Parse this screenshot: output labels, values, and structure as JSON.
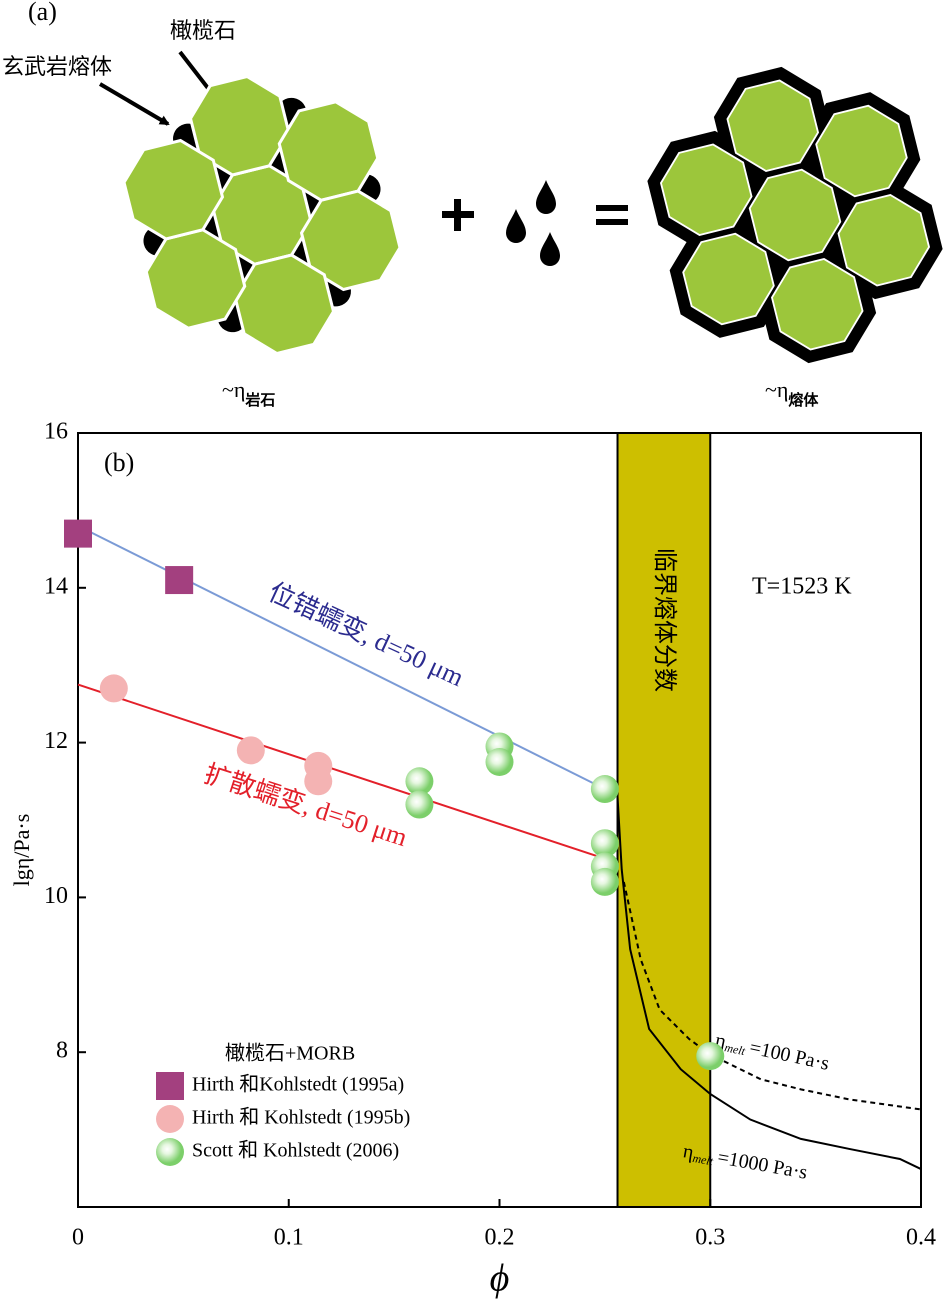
{
  "panel_a": {
    "label": "(a)",
    "olivine_label": "橄榄石",
    "melt_label": "玄武岩熔体",
    "viscosity_labels": [
      {
        "symbol": "~η",
        "subscript": "岩石"
      },
      {
        "symbol": "~η",
        "subscript": "熔体"
      }
    ]
  },
  "chart_data": {
    "type": "scatter",
    "panel_label": "(b)",
    "xlabel": "ϕ",
    "ylabel": "lgη/Pa·s",
    "xlim": [
      0,
      0.4
    ],
    "ylim": [
      6,
      16
    ],
    "xticks": [
      0,
      0.1,
      0.2,
      0.3,
      0.4
    ],
    "yticks": [
      8,
      10,
      12,
      14,
      16
    ],
    "annotation": "T=1523 K",
    "legend_title": "橄榄石+MORB",
    "legend": "lower left",
    "series": [
      {
        "name": "Hirth 和Kohlstedt (1995a)",
        "marker": "square",
        "color": "#a3407f",
        "x": [
          0,
          0.048
        ],
        "values": [
          14.7,
          14.1
        ]
      },
      {
        "name": "Hirth 和 Kohlstedt (1995b)",
        "marker": "circle",
        "color": "#f4b3b3",
        "x": [
          0.017,
          0.082,
          0.114,
          0.114
        ],
        "values": [
          12.7,
          11.9,
          11.7,
          11.5
        ]
      },
      {
        "name": "Scott 和 Kohlstedt (2006)",
        "marker": "sphere",
        "color": "#7ccf6a",
        "x": [
          0.162,
          0.162,
          0.2,
          0.2,
          0.25,
          0.25,
          0.25,
          0.25,
          0.3
        ],
        "values": [
          11.5,
          11.2,
          11.95,
          11.75,
          11.4,
          10.7,
          10.4,
          10.2,
          7.95
        ]
      }
    ],
    "lines": [
      {
        "label": "位错蠕变, d=50 μm",
        "color": "#7b9bd6",
        "label_color": "#2b2b8f",
        "dash": false,
        "x": [
          0,
          0.25
        ],
        "values": [
          14.8,
          11.4
        ]
      },
      {
        "label": "扩散蠕变, d=50 μm",
        "color": "#e3202a",
        "label_color": "#e3202a",
        "dash": false,
        "x": [
          0,
          0.25
        ],
        "values": [
          12.75,
          10.5
        ]
      },
      {
        "label": {
          "symbol": "η",
          "subscript": "melt",
          "text": "=1000 Pa·s"
        },
        "color": "#000000",
        "dash": false,
        "x": [
          0.256,
          0.258,
          0.262,
          0.271,
          0.286,
          0.3,
          0.319,
          0.343,
          0.366,
          0.39,
          0.4
        ],
        "values": [
          11.3,
          10.36,
          9.33,
          8.3,
          7.78,
          7.46,
          7.13,
          6.88,
          6.75,
          6.62,
          6.49
        ]
      },
      {
        "label": {
          "symbol": "η",
          "subscript": "melt",
          "text": "=100 Pa·s"
        },
        "color": "#000000",
        "dash": true,
        "x": [
          0.259,
          0.267,
          0.276,
          0.29,
          0.3,
          0.324,
          0.343,
          0.366,
          0.4
        ],
        "values": [
          10.2,
          9.2,
          8.55,
          8.17,
          7.97,
          7.65,
          7.52,
          7.39,
          7.26
        ]
      }
    ],
    "band": {
      "x": [
        0.256,
        0.3
      ],
      "color": "#cdbf00",
      "label": "临界熔体分数"
    }
  }
}
